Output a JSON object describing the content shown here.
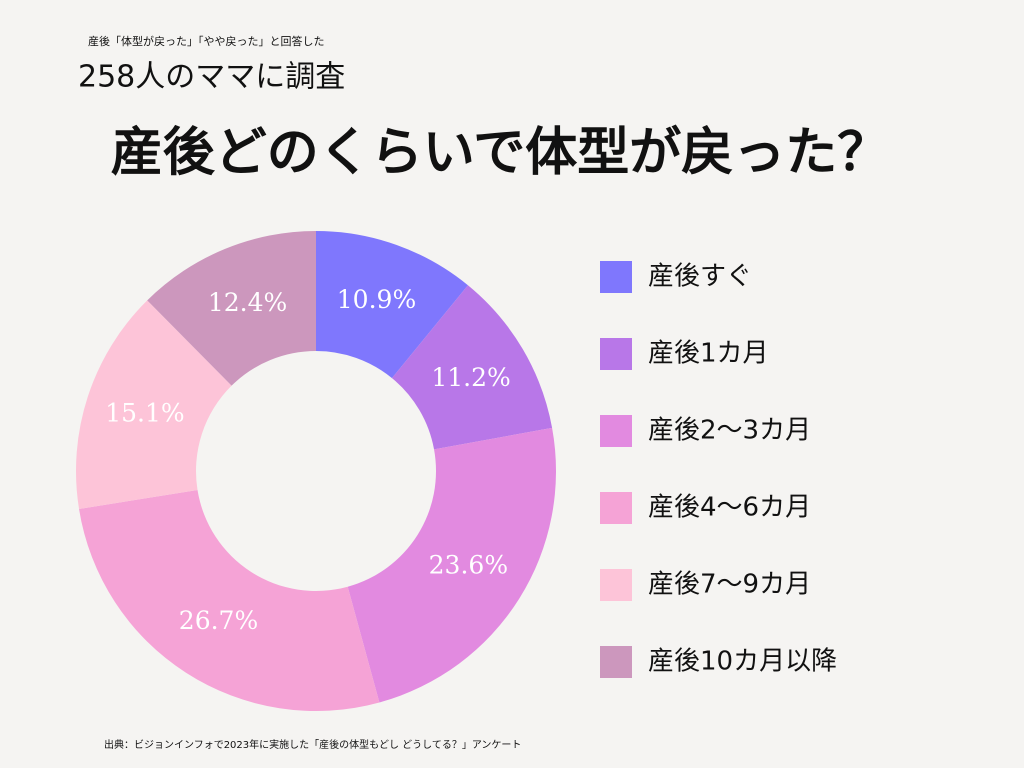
{
  "chart_data": {
    "type": "pie",
    "kicker": "産後「体型が戻った」「やや戻った」と回答した",
    "subtitle": "258人のママに調査",
    "title": "産後どのくらいで体型が戻った？",
    "source": "出典：ビジョンインフォで2023年に実施した「産後の体型もどし どうしてる？」アンケート",
    "categories": [
      "産後すぐ",
      "産後1カ月",
      "産後2〜3カ月",
      "産後4〜6カ月",
      "産後7〜9カ月",
      "産後10カ月以降"
    ],
    "values": [
      10.9,
      11.2,
      23.6,
      26.7,
      15.1,
      12.4
    ],
    "value_labels": [
      "10.9%",
      "11.2%",
      "23.6%",
      "26.7%",
      "15.1%",
      "12.4%"
    ],
    "colors": [
      "#7f77fd",
      "#b877e8",
      "#e28ae0",
      "#f5a3d6",
      "#fdc4d8",
      "#cc97bd"
    ]
  }
}
